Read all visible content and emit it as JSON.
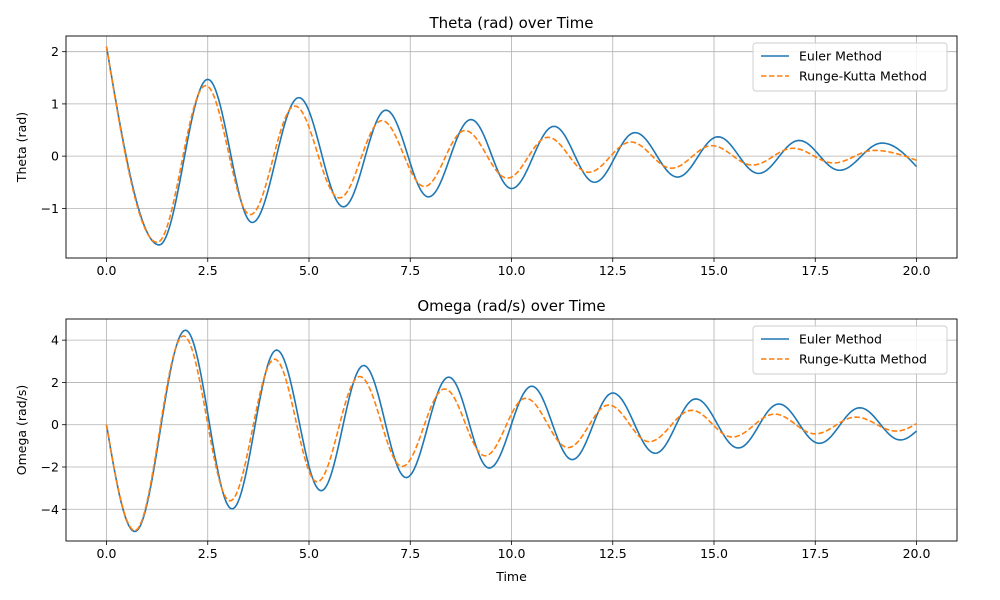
{
  "chart_data": [
    {
      "type": "line",
      "title": "Theta (rad) over Time",
      "xlabel": "",
      "ylabel": "Theta (rad)",
      "xlim": [
        -1.0,
        21.0
      ],
      "ylim": [
        -1.95,
        2.3
      ],
      "xticks": [
        0.0,
        2.5,
        5.0,
        7.5,
        10.0,
        12.5,
        15.0,
        17.5,
        20.0
      ],
      "xtick_labels": [
        "0.0",
        "2.5",
        "5.0",
        "7.5",
        "10.0",
        "12.5",
        "15.0",
        "17.5",
        "20.0"
      ],
      "yticks": [
        -1,
        0,
        1,
        2
      ],
      "ytick_labels": [
        "−1",
        "0",
        "1",
        "2"
      ],
      "grid": true,
      "legend_position": "top-right",
      "series": [
        {
          "name": "Euler Method",
          "color": "#1f77b4",
          "style": "solid",
          "x": [
            0.0,
            1.3,
            2.5,
            3.6,
            4.75,
            5.85,
            6.9,
            7.95,
            9.0,
            10.0,
            11.05,
            12.05,
            13.05,
            14.1,
            15.1,
            16.1,
            17.1,
            18.1,
            19.15,
            20.0
          ],
          "y": [
            2.1,
            -1.7,
            1.47,
            -1.27,
            1.12,
            -0.97,
            0.88,
            -0.78,
            0.7,
            -0.62,
            0.57,
            -0.5,
            0.45,
            -0.4,
            0.37,
            -0.33,
            0.3,
            -0.27,
            0.25,
            -0.2
          ]
        },
        {
          "name": "Runge-Kutta Method",
          "color": "#ff7f0e",
          "style": "dashed",
          "x": [
            0.0,
            1.25,
            2.45,
            3.55,
            4.65,
            5.75,
            6.8,
            7.85,
            8.85,
            9.9,
            10.9,
            11.9,
            12.95,
            13.95,
            14.95,
            15.95,
            16.95,
            17.95,
            18.95,
            20.0
          ],
          "y": [
            2.1,
            -1.65,
            1.35,
            -1.12,
            0.96,
            -0.8,
            0.68,
            -0.58,
            0.49,
            -0.42,
            0.36,
            -0.31,
            0.27,
            -0.23,
            0.2,
            -0.17,
            0.15,
            -0.13,
            0.11,
            -0.08
          ]
        }
      ]
    },
    {
      "type": "line",
      "title": "Omega (rad/s) over Time",
      "xlabel": "Time",
      "ylabel": "Omega (rad/s)",
      "xlim": [
        -1.0,
        21.0
      ],
      "ylim": [
        -5.5,
        5.0
      ],
      "xticks": [
        0.0,
        2.5,
        5.0,
        7.5,
        10.0,
        12.5,
        15.0,
        17.5,
        20.0
      ],
      "xtick_labels": [
        "0.0",
        "2.5",
        "5.0",
        "7.5",
        "10.0",
        "12.5",
        "15.0",
        "17.5",
        "20.0"
      ],
      "yticks": [
        -4,
        -2,
        0,
        2,
        4
      ],
      "ytick_labels": [
        "−4",
        "−2",
        "0",
        "2",
        "4"
      ],
      "grid": true,
      "legend_position": "top-right",
      "series": [
        {
          "name": "Euler Method",
          "color": "#1f77b4",
          "style": "solid",
          "x": [
            0.0,
            0.7,
            1.95,
            3.1,
            4.2,
            5.3,
            6.35,
            7.4,
            8.45,
            9.45,
            10.5,
            11.5,
            12.5,
            13.55,
            14.55,
            15.6,
            16.6,
            17.6,
            18.6,
            19.6,
            20.0
          ],
          "y": [
            0.0,
            -5.05,
            4.47,
            -3.98,
            3.53,
            -3.12,
            2.8,
            -2.5,
            2.25,
            -2.05,
            1.82,
            -1.65,
            1.5,
            -1.35,
            1.22,
            -1.1,
            0.98,
            -0.88,
            0.8,
            -0.72,
            -0.3
          ]
        },
        {
          "name": "Runge-Kutta Method",
          "color": "#ff7f0e",
          "style": "dashed",
          "x": [
            0.0,
            0.7,
            1.9,
            3.05,
            4.15,
            5.2,
            6.25,
            7.3,
            8.35,
            9.35,
            10.35,
            11.4,
            12.4,
            13.4,
            14.45,
            15.45,
            16.5,
            17.5,
            18.5,
            19.5,
            20.0
          ],
          "y": [
            0.0,
            -5.0,
            4.2,
            -3.6,
            3.1,
            -2.7,
            2.28,
            -1.97,
            1.69,
            -1.47,
            1.25,
            -1.08,
            0.93,
            -0.8,
            0.68,
            -0.58,
            0.5,
            -0.43,
            0.36,
            -0.3,
            0.05
          ]
        }
      ]
    }
  ]
}
